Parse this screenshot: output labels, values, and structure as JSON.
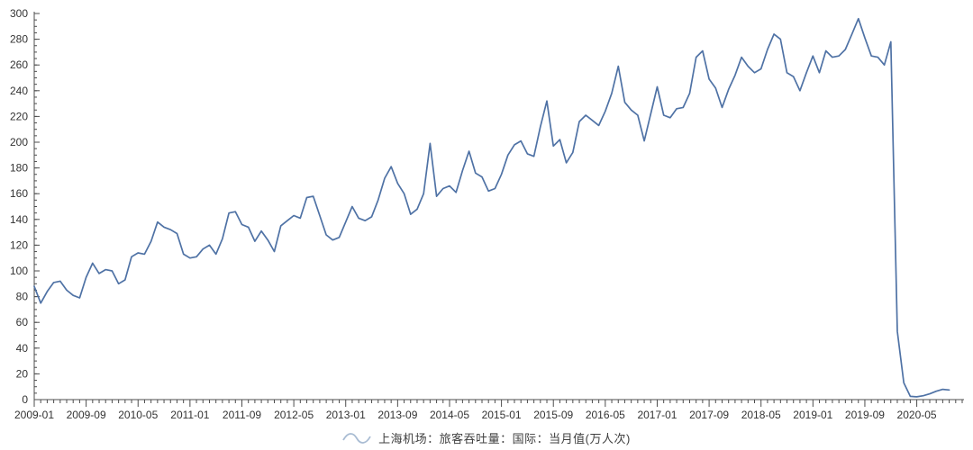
{
  "legend": {
    "label": "上海机场：旅客吞吐量：国际：当月值(万人次)"
  },
  "colors": {
    "line": "#4f72a5",
    "legend_marker": "#a9bcd3",
    "axis": "#4d4d4d",
    "tick_text": "#333333",
    "background": "#ffffff"
  },
  "chart_data": {
    "type": "line",
    "title": "",
    "series_name": "上海机场：旅客吞吐量：国际：当月值(万人次)",
    "start_month": "2009-01",
    "end_month": "2020-10",
    "unit": "万人次",
    "grid": false,
    "legend_position": "bottom-center",
    "ylim": [
      0,
      300
    ],
    "y_ticks": [
      0,
      20,
      40,
      60,
      80,
      100,
      120,
      140,
      160,
      180,
      200,
      220,
      240,
      260,
      280,
      300
    ],
    "y_minor_step": 5,
    "x_tick_interval_months": 8,
    "x_minor_step_months": 1,
    "x_axis_total_months": 143,
    "x_tick_labels": [
      "2009-01",
      "2009-09",
      "2010-05",
      "2011-01",
      "2011-09",
      "2012-05",
      "2013-01",
      "2013-09",
      "2014-05",
      "2015-01",
      "2015-09",
      "2016-05",
      "2017-01",
      "2017-09",
      "2018-05",
      "2019-01",
      "2019-09",
      "2020-05"
    ],
    "values": [
      88,
      75,
      84,
      91,
      92,
      85,
      81,
      79,
      95,
      106,
      98,
      101,
      100,
      90,
      93,
      111,
      114,
      113,
      123,
      138,
      134,
      132,
      129,
      113,
      110,
      111,
      117,
      120,
      113,
      125,
      145,
      146,
      136,
      134,
      123,
      131,
      124,
      115,
      135,
      139,
      143,
      141,
      157,
      158,
      143,
      128,
      124,
      126,
      138,
      150,
      141,
      139,
      142,
      155,
      172,
      181,
      168,
      160,
      144,
      148,
      160,
      199,
      158,
      164,
      166,
      161,
      178,
      193,
      176,
      173,
      162,
      164,
      175,
      190,
      198,
      201,
      191,
      189,
      212,
      232,
      197,
      202,
      184,
      192,
      216,
      221,
      217,
      213,
      224,
      238,
      259,
      231,
      225,
      221,
      201,
      222,
      243,
      221,
      219,
      226,
      227,
      238,
      266,
      271,
      249,
      242,
      227,
      241,
      252,
      266,
      259,
      254,
      257,
      272,
      284,
      280,
      254,
      251,
      240,
      254,
      267,
      254,
      271,
      266,
      267,
      272,
      284,
      296,
      281,
      267,
      266,
      260,
      278,
      53,
      13,
      2.5,
      2.2,
      3,
      4.5,
      6.5,
      8,
      7.5
    ]
  }
}
